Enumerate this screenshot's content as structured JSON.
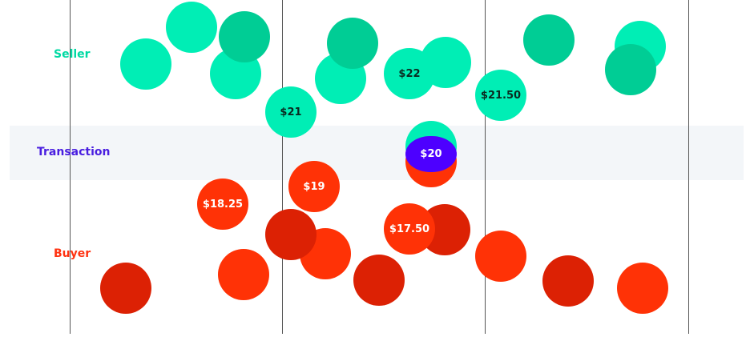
{
  "rows": {
    "seller": "Seller",
    "transaction": "Transaction",
    "buyer": "Buyer"
  },
  "colors": {
    "seller_light": "#00eeb5",
    "seller_dark": "#00cd95",
    "buyer_light": "#ff3206",
    "buyer_dark": "#dc2104",
    "transaction": "#4d00ff",
    "band": "#f3f6f9"
  },
  "prices": {
    "seller": [
      "$21",
      "$22",
      "$21.50"
    ],
    "transaction": "$20",
    "buyer": [
      "$18.25",
      "$19",
      "$17.50"
    ]
  }
}
